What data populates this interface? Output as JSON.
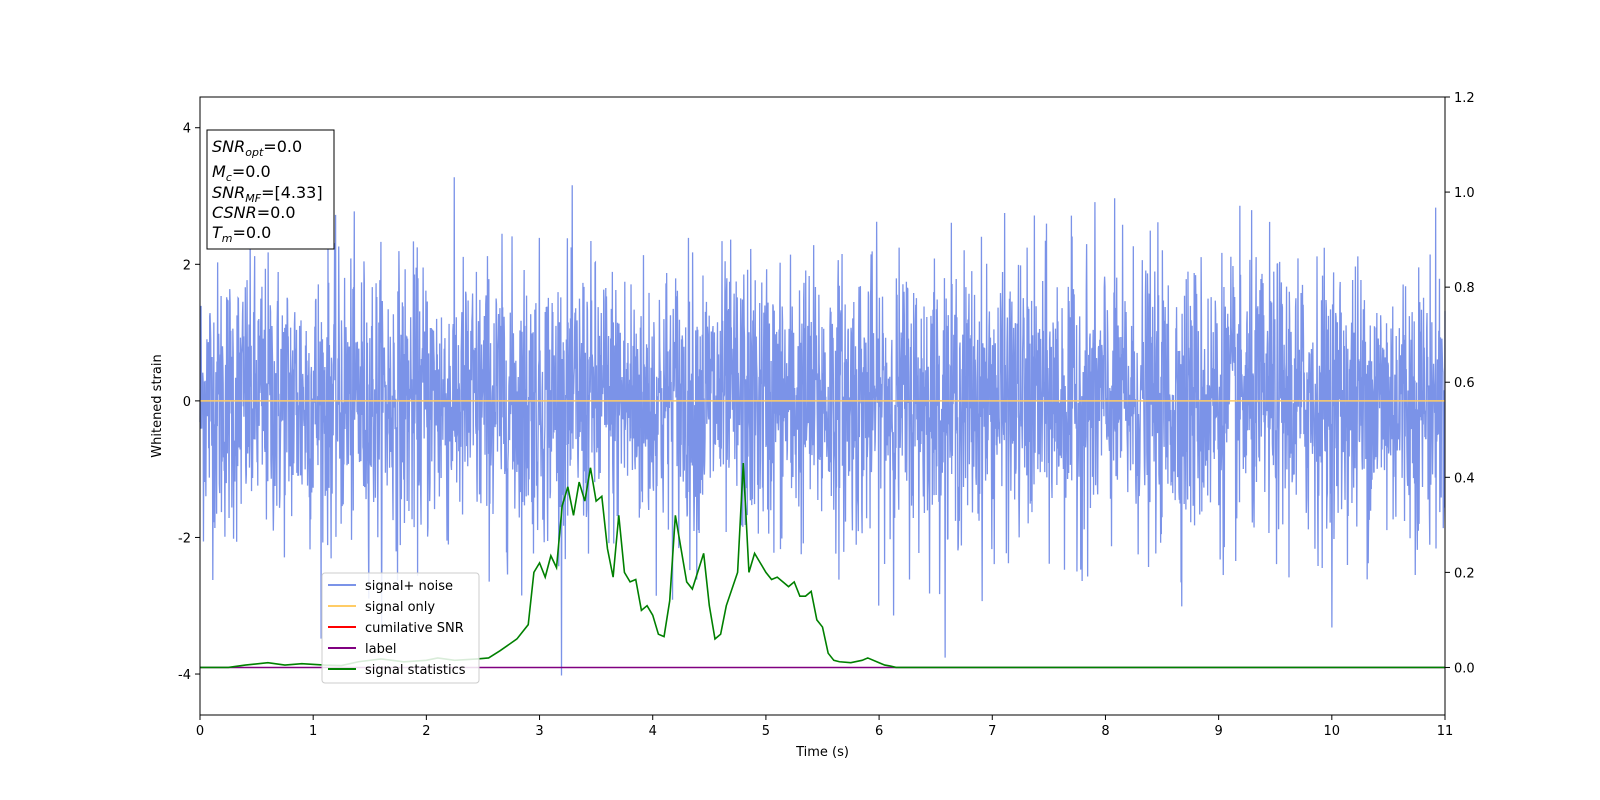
{
  "chart_data": {
    "type": "line",
    "xlabel": "Time (s)",
    "ylabel": "Whitened strain",
    "xlim": [
      0,
      11
    ],
    "ylim_left": [
      -4.6,
      4.45
    ],
    "ylim_right": [
      -0.1,
      1.2
    ],
    "x_ticks": [
      0,
      1,
      2,
      3,
      4,
      5,
      6,
      7,
      8,
      9,
      10,
      11
    ],
    "y_ticks_left": [
      -4,
      -2,
      0,
      2,
      4
    ],
    "y_ticks_right": [
      0.0,
      0.2,
      0.4,
      0.6,
      0.8,
      1.0,
      1.2
    ],
    "grid": false,
    "legend_placement": "lower-left",
    "annotation_lines": [
      {
        "var": "SNR",
        "sub": "opt",
        "value": "=0.0"
      },
      {
        "var": "M",
        "sub": "c",
        "value": "=0.0"
      },
      {
        "var": "SNR",
        "sub": "MF",
        "value": "=[4.33]"
      },
      {
        "var": "CSNR",
        "sub": "",
        "value": "=0.0"
      },
      {
        "var": "T",
        "sub": "m",
        "value": "=0.0"
      }
    ],
    "series": [
      {
        "name": "signal+ noise",
        "color": "#7b93e8",
        "axis": "left",
        "kind": "noise",
        "amplitude_std": 1.0,
        "peak_approx": 4.0
      },
      {
        "name": "signal only",
        "color": "#ffcc66",
        "axis": "left",
        "x": [
          0,
          11
        ],
        "y": [
          0,
          0
        ]
      },
      {
        "name": "cumilative SNR",
        "color": "#ff0000",
        "axis": "right",
        "x": [],
        "y": []
      },
      {
        "name": "label",
        "color": "#800080",
        "axis": "right",
        "x": [
          0,
          11
        ],
        "y": [
          0,
          0
        ]
      },
      {
        "name": "signal statistics",
        "color": "#008000",
        "axis": "right",
        "x": [
          0,
          0.25,
          0.4,
          0.6,
          0.75,
          0.9,
          1.1,
          1.25,
          1.4,
          1.6,
          1.8,
          2.0,
          2.1,
          2.25,
          2.45,
          2.55,
          2.65,
          2.8,
          2.9,
          2.95,
          3.0,
          3.05,
          3.1,
          3.15,
          3.2,
          3.25,
          3.3,
          3.35,
          3.4,
          3.45,
          3.5,
          3.55,
          3.6,
          3.65,
          3.7,
          3.75,
          3.8,
          3.85,
          3.9,
          3.95,
          4.0,
          4.05,
          4.1,
          4.15,
          4.2,
          4.3,
          4.35,
          4.45,
          4.5,
          4.55,
          4.6,
          4.65,
          4.75,
          4.8,
          4.85,
          4.9,
          4.95,
          5.0,
          5.05,
          5.1,
          5.15,
          5.2,
          5.25,
          5.3,
          5.35,
          5.4,
          5.45,
          5.5,
          5.55,
          5.6,
          5.65,
          5.75,
          5.85,
          5.9,
          6.0,
          6.05,
          6.1,
          6.15,
          6.2,
          6.25,
          6.35,
          6.45,
          6.5,
          6.55,
          6.6,
          6.7,
          6.8,
          6.9,
          7.0,
          7.05,
          7.15,
          7.25,
          7.5,
          7.75,
          8.0,
          8.5,
          9.0,
          9.5,
          10.0,
          10.3,
          10.6,
          10.8,
          11.0
        ],
        "y": [
          0,
          0,
          0.005,
          0.01,
          0.005,
          0.008,
          0.005,
          0.004,
          0.012,
          0.018,
          0.012,
          0.015,
          0.02,
          0.015,
          0.018,
          0.02,
          0.035,
          0.06,
          0.09,
          0.2,
          0.22,
          0.19,
          0.235,
          0.21,
          0.34,
          0.38,
          0.32,
          0.39,
          0.35,
          0.42,
          0.35,
          0.36,
          0.25,
          0.19,
          0.32,
          0.2,
          0.18,
          0.185,
          0.12,
          0.13,
          0.11,
          0.07,
          0.065,
          0.14,
          0.32,
          0.18,
          0.165,
          0.24,
          0.13,
          0.06,
          0.07,
          0.13,
          0.2,
          0.43,
          0.2,
          0.24,
          0.22,
          0.2,
          0.185,
          0.19,
          0.18,
          0.17,
          0.18,
          0.15,
          0.15,
          0.16,
          0.1,
          0.085,
          0.03,
          0.015,
          0.012,
          0.01,
          0.015,
          0.02,
          0.01,
          0.005,
          0.003,
          0.0,
          0.0,
          0.0,
          0.0,
          0.0,
          0.0,
          0.0,
          0.0,
          0.0,
          0.0,
          0.0,
          0.0,
          0.0,
          0.0,
          0.0,
          0.0,
          0.0,
          0.0,
          0.0,
          0.0,
          0.0,
          0.0,
          0.0,
          0.0,
          0.0,
          0.0
        ]
      }
    ]
  }
}
